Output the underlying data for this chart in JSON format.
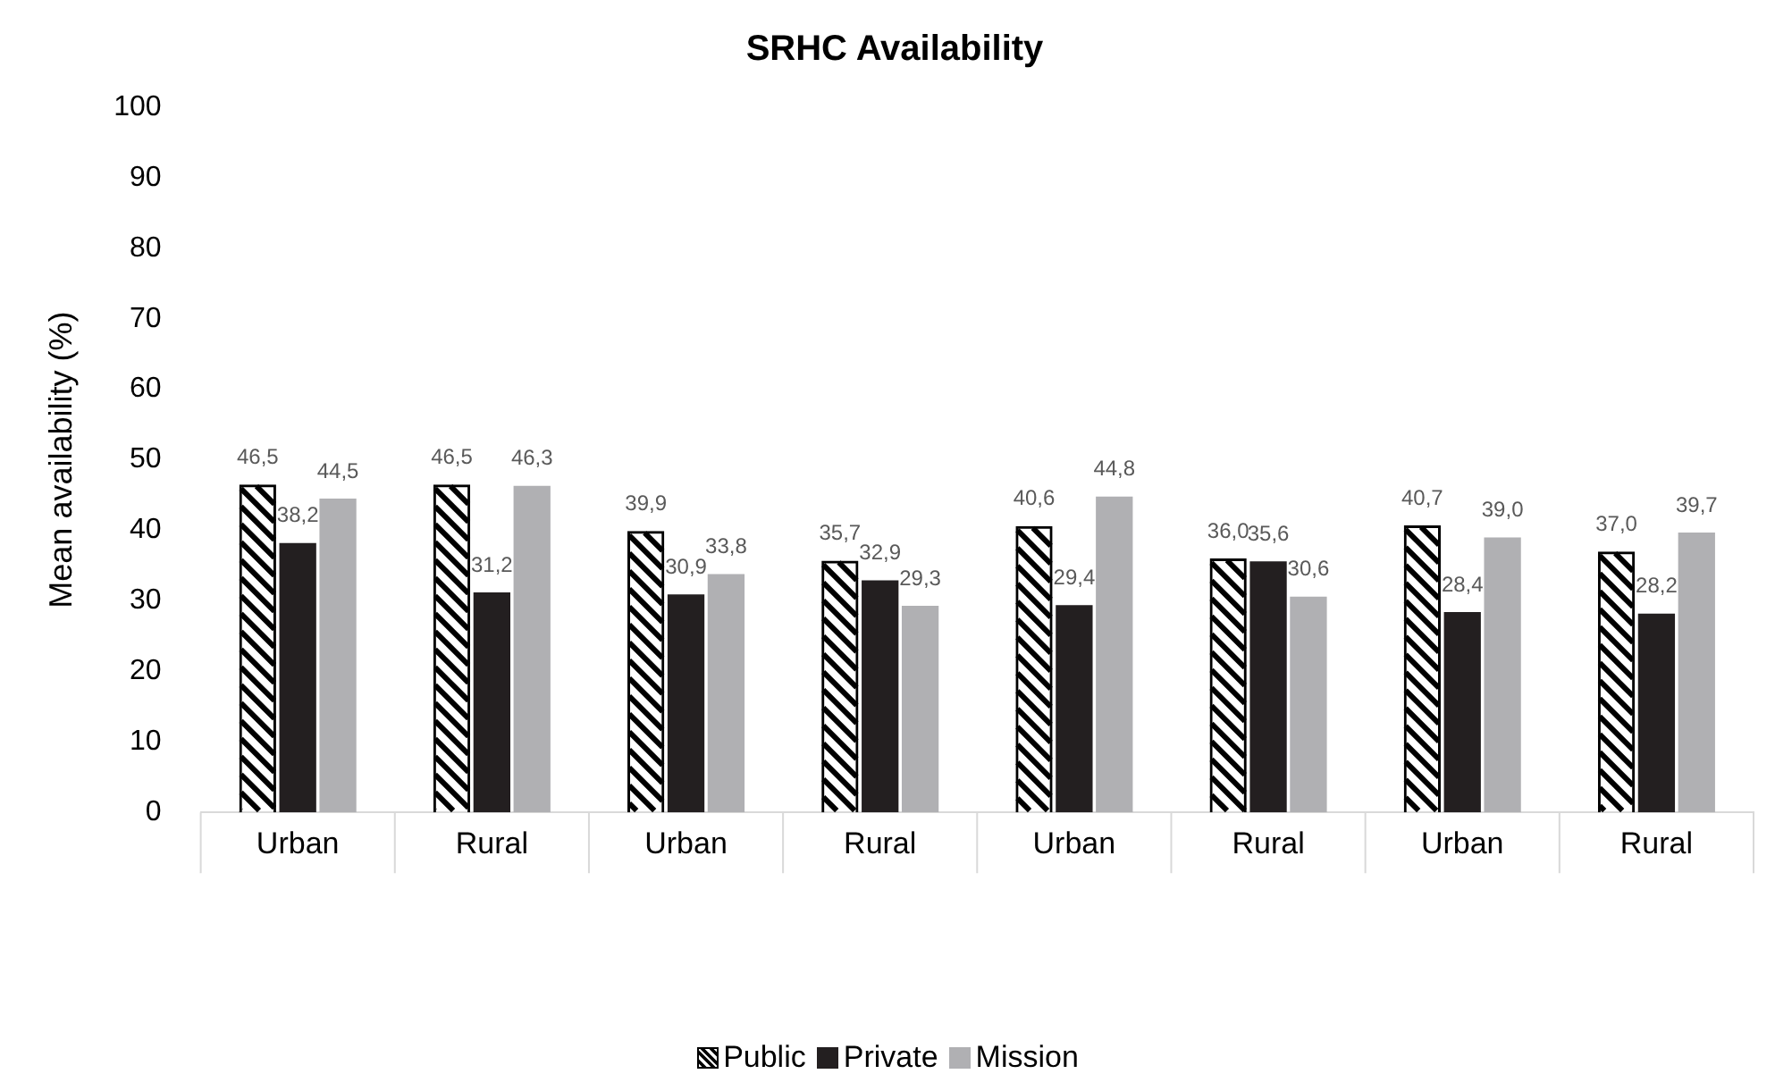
{
  "chart_data": {
    "type": "bar",
    "title": "SRHC Availability",
    "ylabel": "Mean availability (%)",
    "categories": [
      "Urban",
      "Rural",
      "Urban",
      "Rural",
      "Urban",
      "Rural",
      "Urban",
      "Rural"
    ],
    "series": [
      {
        "name": "Public",
        "color": "#000000",
        "values": [
          46.5,
          46.5,
          39.9,
          35.7,
          40.6,
          36.0,
          40.7,
          37.0
        ],
        "value_labels": [
          "46,5",
          "46,5",
          "39,9",
          "35,7",
          "40,6",
          "36,0",
          "40,7",
          "37,0"
        ]
      },
      {
        "name": "Private",
        "color": "#231f20",
        "values": [
          38.2,
          31.2,
          30.9,
          32.9,
          29.4,
          35.6,
          28.4,
          28.2
        ],
        "value_labels": [
          "38,2",
          "31,2",
          "30,9",
          "32,9",
          "29,4",
          "35,6",
          "28,4",
          "28,2"
        ]
      },
      {
        "name": "Mission",
        "color": "#b0b0b3",
        "values": [
          44.5,
          46.3,
          33.8,
          29.3,
          44.8,
          30.6,
          39.0,
          39.7
        ],
        "value_labels": [
          "44,5",
          "46,3",
          "33,8",
          "29,3",
          "44,8",
          "30,6",
          "39,0",
          "39,7"
        ]
      }
    ],
    "ylim": [
      0,
      100
    ],
    "yticks": [
      0,
      10,
      20,
      30,
      40,
      50,
      60,
      70,
      80,
      90,
      100
    ],
    "grid": false,
    "legend": "bottom"
  }
}
